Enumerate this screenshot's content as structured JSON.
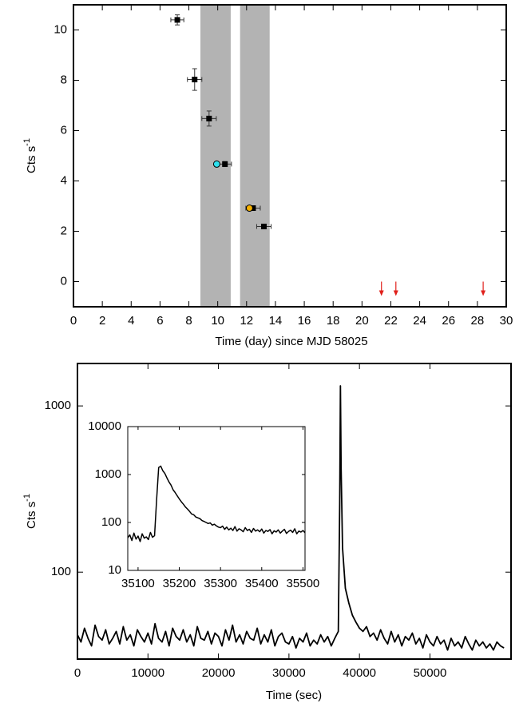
{
  "chart_data": [
    {
      "type": "scatter",
      "x_label": "Time (day) since MJD 58025",
      "y_label": "Cts s",
      "y_label_sup": "-1",
      "xlim": [
        0,
        30
      ],
      "ylim": [
        -1,
        11
      ],
      "xticks": [
        0,
        2,
        4,
        6,
        8,
        10,
        12,
        14,
        16,
        18,
        20,
        22,
        24,
        26,
        28,
        30
      ],
      "yticks": [
        0,
        2,
        4,
        6,
        8,
        10
      ],
      "shaded_regions": [
        [
          8.8,
          10.9
        ],
        [
          11.55,
          13.6
        ]
      ],
      "shade_color": "#b3b3b3",
      "series": [
        {
          "marker": "square",
          "color": "#000000",
          "x": [
            7.2,
            8.4,
            9.4,
            10.5,
            12.45,
            13.2
          ],
          "values": [
            10.4,
            8.03,
            6.48,
            4.67,
            2.92,
            2.19
          ],
          "xerr": [
            0.45,
            0.5,
            0.5,
            0.45,
            0.5,
            0.5
          ],
          "yerr": [
            0.2,
            0.43,
            0.3,
            0.1,
            0.08,
            0.08
          ]
        },
        {
          "marker": "circle",
          "color": "#2ee0ee",
          "x": [
            9.93
          ],
          "values": [
            4.67
          ]
        },
        {
          "marker": "circle",
          "color": "#f5b000",
          "x": [
            12.2
          ],
          "values": [
            2.92
          ]
        }
      ],
      "upper_limits": {
        "color": "#e0201b",
        "x": [
          21.35,
          22.35,
          28.4
        ],
        "values": [
          0,
          0,
          0
        ]
      }
    },
    {
      "type": "line",
      "x_label": "Time (sec)",
      "y_label": "Cts s",
      "y_label_sup": "-1",
      "log_y": true,
      "xlim": [
        0,
        61500
      ],
      "ylim": [
        30,
        1800
      ],
      "xticks": [
        0,
        10000,
        20000,
        30000,
        40000,
        50000
      ],
      "yticks": [
        100,
        1000
      ],
      "color": "#000000",
      "x": [
        0,
        500,
        1000,
        1500,
        2000,
        2500,
        3000,
        3500,
        4000,
        4500,
        5000,
        5500,
        6000,
        6500,
        7000,
        7500,
        8000,
        8500,
        9000,
        9500,
        10000,
        10500,
        11000,
        11500,
        12000,
        12500,
        13000,
        13500,
        14000,
        14500,
        15000,
        15500,
        16000,
        16500,
        17000,
        17500,
        18000,
        18500,
        19000,
        19500,
        20000,
        20500,
        21000,
        21500,
        22000,
        22500,
        23000,
        23500,
        24000,
        24500,
        25000,
        25500,
        26000,
        26500,
        27000,
        27500,
        28000,
        28500,
        29000,
        29500,
        30000,
        30500,
        31000,
        31500,
        32000,
        32500,
        33000,
        33500,
        34000,
        34500,
        35000,
        35500,
        36000,
        36500,
        37000,
        37200,
        37300,
        37400,
        37600,
        38000,
        38500,
        39000,
        39500,
        40000,
        40500,
        41000,
        41500,
        42000,
        42500,
        43000,
        43500,
        44000,
        44500,
        45000,
        45500,
        46000,
        46500,
        47000,
        47500,
        48000,
        48500,
        49000,
        49500,
        50000,
        50500,
        51000,
        51500,
        52000,
        52500,
        53000,
        53500,
        54000,
        54500,
        55000,
        55500,
        56000,
        56500,
        57000,
        57500,
        58000,
        58500,
        59000,
        59500,
        60000,
        60500
      ],
      "values": [
        42,
        38,
        46,
        40,
        36,
        48,
        41,
        39,
        45,
        37,
        40,
        44,
        37,
        47,
        39,
        42,
        36,
        45,
        41,
        38,
        43,
        37,
        49,
        40,
        38,
        44,
        36,
        46,
        41,
        39,
        45,
        38,
        42,
        36,
        47,
        40,
        39,
        44,
        37,
        43,
        41,
        36,
        45,
        39,
        48,
        38,
        42,
        37,
        44,
        40,
        39,
        46,
        37,
        42,
        38,
        45,
        36,
        41,
        43,
        38,
        37,
        41,
        35,
        40,
        38,
        43,
        36,
        39,
        37,
        42,
        38,
        41,
        36,
        40,
        44,
        260,
        1320,
        420,
        140,
        80,
        65,
        55,
        50,
        46,
        44,
        47,
        41,
        43,
        39,
        45,
        40,
        37,
        44,
        38,
        42,
        36,
        41,
        39,
        43,
        37,
        40,
        35,
        42,
        38,
        36,
        41,
        37,
        39,
        34,
        40,
        36,
        38,
        35,
        41,
        37,
        34,
        39,
        36,
        38,
        35,
        37,
        34,
        38,
        36,
        35
      ]
    },
    {
      "type": "line",
      "log_y": true,
      "xlim": [
        35075,
        35505
      ],
      "ylim": [
        10,
        10000
      ],
      "xticks": [
        35100,
        35200,
        35300,
        35400,
        35500
      ],
      "yticks": [
        10,
        100,
        1000,
        10000
      ],
      "color": "#000000",
      "x": [
        35075,
        35080,
        35085,
        35090,
        35095,
        35100,
        35105,
        35110,
        35115,
        35120,
        35125,
        35130,
        35135,
        35140,
        35145,
        35150,
        35155,
        35160,
        35165,
        35170,
        35175,
        35180,
        35185,
        35190,
        35195,
        35200,
        35205,
        35210,
        35215,
        35220,
        35225,
        35230,
        35235,
        35240,
        35245,
        35250,
        35255,
        35260,
        35265,
        35270,
        35275,
        35280,
        35285,
        35290,
        35295,
        35300,
        35305,
        35310,
        35315,
        35320,
        35325,
        35330,
        35335,
        35340,
        35345,
        35350,
        35355,
        35360,
        35365,
        35370,
        35375,
        35380,
        35385,
        35390,
        35395,
        35400,
        35405,
        35410,
        35415,
        35420,
        35425,
        35430,
        35435,
        35440,
        35445,
        35450,
        35455,
        35460,
        35465,
        35470,
        35475,
        35480,
        35485,
        35490,
        35495,
        35500,
        35505
      ],
      "values": [
        48,
        55,
        42,
        60,
        45,
        52,
        40,
        58,
        47,
        50,
        44,
        62,
        49,
        53,
        300,
        1400,
        1500,
        1200,
        1050,
        850,
        700,
        600,
        480,
        420,
        360,
        310,
        270,
        240,
        210,
        190,
        170,
        150,
        145,
        130,
        125,
        120,
        110,
        105,
        100,
        95,
        98,
        88,
        92,
        85,
        80,
        78,
        84,
        72,
        80,
        70,
        76,
        68,
        82,
        66,
        74,
        70,
        64,
        78,
        68,
        72,
        62,
        75,
        66,
        70,
        64,
        73,
        60,
        68,
        65,
        71,
        58,
        67,
        63,
        70,
        60,
        66,
        72,
        59,
        65,
        69,
        62,
        74,
        58,
        66,
        63,
        68,
        61
      ]
    }
  ]
}
